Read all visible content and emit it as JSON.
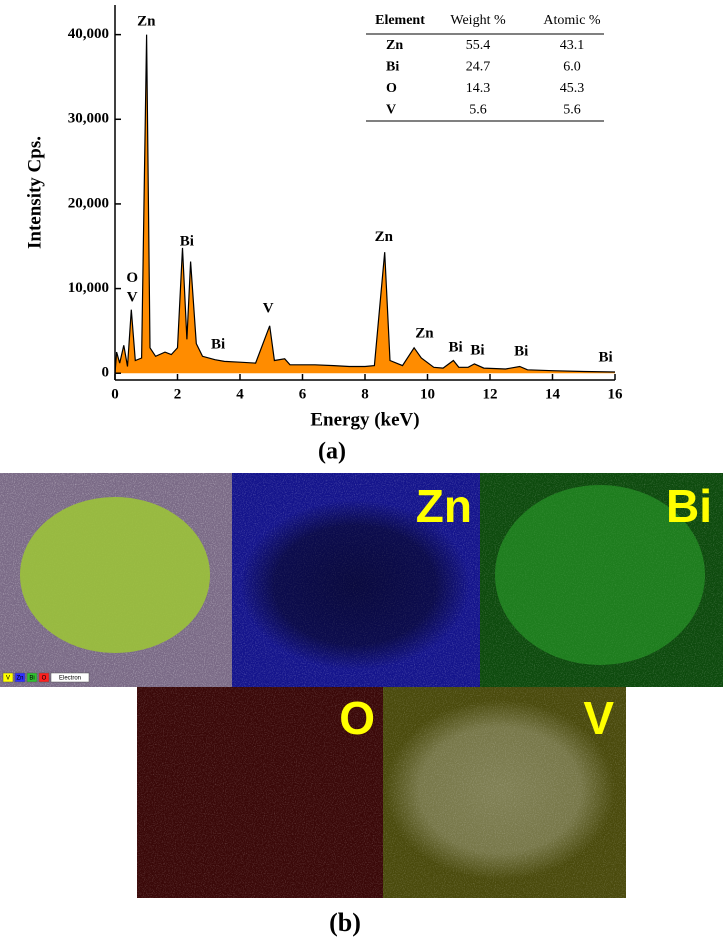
{
  "chart_data": {
    "type": "area",
    "x_label": "Energy (keV)",
    "y_label": "Intensity Cps.",
    "color": "#ff8c00",
    "x": [
      0,
      0.05,
      0.15,
      0.28,
      0.4,
      0.52,
      0.65,
      0.85,
      1.01,
      1.12,
      1.3,
      1.6,
      1.8,
      2.0,
      2.16,
      2.3,
      2.42,
      2.6,
      2.8,
      3.2,
      3.5,
      4.0,
      4.5,
      4.95,
      5.1,
      5.43,
      5.6,
      6.0,
      6.4,
      7.0,
      7.5,
      8.0,
      8.3,
      8.63,
      8.8,
      9.2,
      9.57,
      9.8,
      10.2,
      10.5,
      10.83,
      11.0,
      11.3,
      11.5,
      11.8,
      12.5,
      12.95,
      13.2,
      14,
      15,
      16
    ],
    "values": [
      0,
      2500,
      1200,
      3300,
      800,
      7500,
      1500,
      1800,
      40000,
      3000,
      2000,
      2500,
      2200,
      3000,
      14800,
      4000,
      13200,
      3500,
      2000,
      1600,
      1400,
      1300,
      1200,
      5600,
      1500,
      1700,
      1000,
      1000,
      1000,
      900,
      800,
      800,
      900,
      14300,
      1500,
      900,
      3000,
      1800,
      700,
      600,
      1500,
      700,
      700,
      1100,
      600,
      500,
      800,
      400,
      300,
      200,
      150
    ],
    "xlim": [
      0,
      16
    ],
    "xticks": [
      0,
      2,
      4,
      6,
      8,
      10,
      12,
      14,
      16
    ],
    "ylim": [
      -800,
      43500
    ],
    "yticks": [
      0,
      {
        "value": 10000,
        "label": "10,000"
      },
      {
        "value": 20000,
        "label": "20,000"
      },
      {
        "value": 30000,
        "label": "30,000"
      },
      {
        "value": 40000,
        "label": "40,000"
      }
    ],
    "annotations": [
      {
        "text": "Zn",
        "x": 1.0,
        "y": 41500
      },
      {
        "text": "O",
        "x": 0.55,
        "y": 11200
      },
      {
        "text": "V",
        "x": 0.55,
        "y": 8900
      },
      {
        "text": "Bi",
        "x": 2.3,
        "y": 15500
      },
      {
        "text": "Bi",
        "x": 3.3,
        "y": 3300
      },
      {
        "text": "V",
        "x": 4.9,
        "y": 7600
      },
      {
        "text": "Zn",
        "x": 8.6,
        "y": 16000
      },
      {
        "text": "Zn",
        "x": 9.9,
        "y": 4600
      },
      {
        "text": "Bi",
        "x": 10.9,
        "y": 3000
      },
      {
        "text": "Bi",
        "x": 11.6,
        "y": 2600
      },
      {
        "text": "Bi",
        "x": 13.0,
        "y": 2500
      },
      {
        "text": "Bi",
        "x": 15.7,
        "y": 1800
      }
    ]
  },
  "table": {
    "header": [
      "Element",
      "Weight %",
      "Atomic %"
    ],
    "rows": [
      [
        "Zn",
        "55.4",
        "43.1"
      ],
      [
        "Bi",
        "24.7",
        "6.0"
      ],
      [
        "O",
        "14.3",
        "45.3"
      ],
      [
        "V",
        "5.6",
        "5.6"
      ]
    ]
  },
  "panel_labels": [
    "(a)",
    "(b)"
  ],
  "maps": [
    "Zn",
    "Bi",
    "O",
    "V"
  ],
  "map_legend": [
    "V",
    "Zn",
    "Bi",
    "O",
    "Electron"
  ]
}
